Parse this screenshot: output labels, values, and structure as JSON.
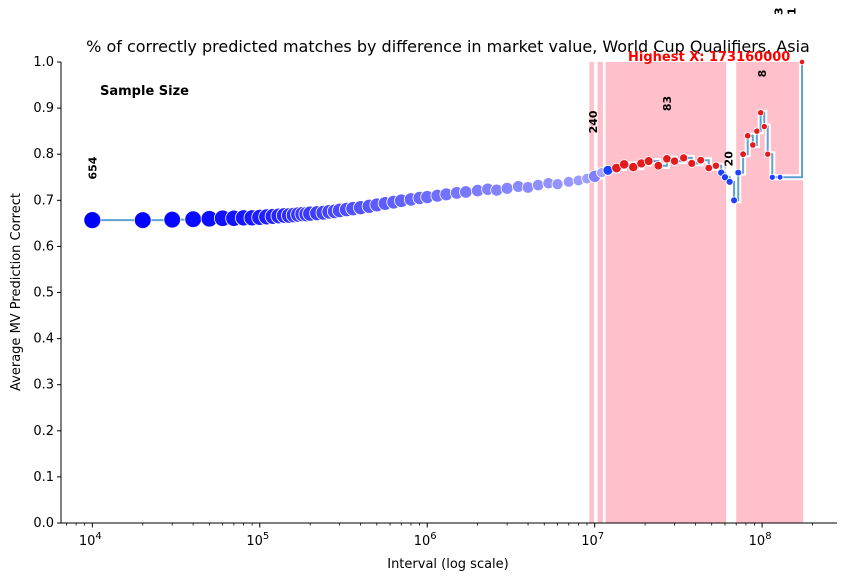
{
  "chart_data": {
    "type": "scatter",
    "title": "% of correctly predicted matches by difference in market value, World Cup Qualifiers, Asia",
    "xlabel": "Interval (log scale)",
    "ylabel": "Average MV Prediction Correct",
    "x_scale": "log",
    "xlim": [
      6500,
      280000000
    ],
    "ylim": [
      0.0,
      1.0
    ],
    "x_ticks": [
      {
        "value": 10000,
        "base": "10",
        "exp": "4"
      },
      {
        "value": 100000,
        "base": "10",
        "exp": "5"
      },
      {
        "value": 1000000,
        "base": "10",
        "exp": "6"
      },
      {
        "value": 10000000,
        "base": "10",
        "exp": "7"
      },
      {
        "value": 100000000,
        "base": "10",
        "exp": "8"
      }
    ],
    "y_ticks": [
      "0.0",
      "0.1",
      "0.2",
      "0.3",
      "0.4",
      "0.5",
      "0.6",
      "0.7",
      "0.8",
      "0.9",
      "1.0"
    ],
    "grid": false,
    "sample_size_label": "Sample Size",
    "highest_x_label": "Highest X: 173160000",
    "colors": {
      "line": "#5fa2d0",
      "highlight_band": "#ffc0cb",
      "point_high": "#0000ff",
      "point_red": "#e41a1c",
      "highest_label": "#ff0000"
    },
    "highlight_bands": [
      {
        "x_start": 9300000,
        "x_end": 9900000
      },
      {
        "x_start": 10400000,
        "x_end": 11200000
      },
      {
        "x_start": 11600000,
        "x_end": 61000000
      },
      {
        "x_start": 70000000,
        "x_end": 176000000
      }
    ],
    "sample_annotations": [
      {
        "x": 10000,
        "y": 0.77,
        "text": "654"
      },
      {
        "x": 9800000,
        "y": 0.87,
        "text": "240"
      },
      {
        "x": 27000000,
        "y": 0.91,
        "text": "83"
      },
      {
        "x": 63000000,
        "y": 0.79,
        "text": "20"
      },
      {
        "x": 100000000,
        "y": 0.975,
        "text": "8"
      },
      {
        "x": 125000000,
        "y": 1.11,
        "text": "3"
      },
      {
        "x": 150000000,
        "y": 1.11,
        "text": "1"
      }
    ],
    "series": [
      {
        "x": [
          10000,
          20000,
          30000,
          40000,
          50000,
          60000,
          70000,
          80000,
          90000,
          100000,
          110000,
          120000,
          130000,
          140000,
          150000,
          160000,
          170000,
          180000,
          190000,
          200000,
          220000,
          240000,
          260000,
          280000,
          300000,
          330000,
          360000,
          400000,
          450000,
          500000,
          560000,
          630000,
          700000,
          800000,
          900000,
          1000000,
          1150000,
          1300000,
          1500000,
          1700000,
          2000000,
          2300000,
          2600000,
          3000000,
          3500000,
          4000000,
          4600000,
          5300000,
          6000000,
          7000000,
          8000000,
          9000000,
          10000000,
          11000000,
          12000000,
          13500000,
          15000000,
          17000000,
          19000000,
          21000000,
          24000000,
          27000000,
          30000000,
          34000000,
          38000000,
          43000000,
          48000000,
          53000000,
          57000000,
          60000000,
          64000000,
          68000000,
          72000000,
          77000000,
          82000000,
          88000000,
          93000000,
          98000000,
          103000000,
          108000000,
          115000000,
          128000000,
          173160000
        ],
        "y": [
          0.657,
          0.657,
          0.658,
          0.659,
          0.66,
          0.661,
          0.661,
          0.662,
          0.662,
          0.663,
          0.664,
          0.665,
          0.666,
          0.667,
          0.667,
          0.668,
          0.669,
          0.67,
          0.67,
          0.671,
          0.672,
          0.673,
          0.675,
          0.676,
          0.678,
          0.68,
          0.682,
          0.684,
          0.687,
          0.69,
          0.693,
          0.696,
          0.699,
          0.702,
          0.705,
          0.707,
          0.71,
          0.713,
          0.716,
          0.718,
          0.721,
          0.724,
          0.722,
          0.726,
          0.73,
          0.728,
          0.733,
          0.737,
          0.735,
          0.74,
          0.743,
          0.747,
          0.752,
          0.76,
          0.765,
          0.77,
          0.778,
          0.772,
          0.78,
          0.785,
          0.775,
          0.79,
          0.785,
          0.792,
          0.78,
          0.787,
          0.77,
          0.775,
          0.76,
          0.75,
          0.74,
          0.7,
          0.76,
          0.8,
          0.84,
          0.82,
          0.85,
          0.89,
          0.86,
          0.8,
          0.75,
          0.75,
          1.0
        ],
        "n": [
          654,
          640,
          630,
          620,
          610,
          600,
          590,
          580,
          570,
          560,
          550,
          540,
          530,
          520,
          510,
          500,
          490,
          480,
          470,
          460,
          450,
          440,
          430,
          420,
          410,
          400,
          390,
          380,
          370,
          360,
          350,
          340,
          330,
          320,
          310,
          300,
          290,
          280,
          270,
          260,
          250,
          240,
          230,
          220,
          210,
          200,
          190,
          180,
          170,
          160,
          150,
          140,
          240,
          120,
          110,
          100,
          90,
          83,
          80,
          70,
          60,
          55,
          50,
          45,
          40,
          35,
          30,
          25,
          22,
          20,
          18,
          16,
          14,
          12,
          10,
          9,
          8,
          8,
          7,
          6,
          5,
          3,
          1
        ]
      }
    ]
  }
}
